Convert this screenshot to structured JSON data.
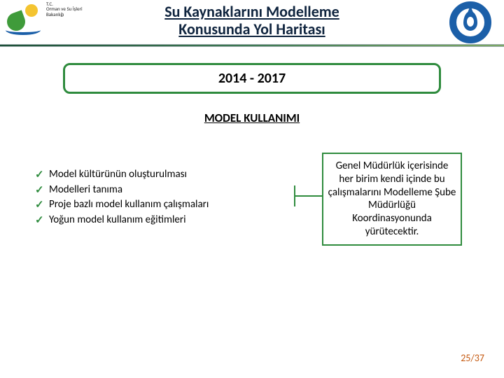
{
  "header": {
    "left_label_line1": "T.C.",
    "left_label_line2": "Orman ve Su İşleri",
    "left_label_line3": "Bakanlığı",
    "title_line1": "Su Kaynaklarını Modelleme",
    "title_line2": "Konusunda Yol Haritası"
  },
  "year_range": "2014 - 2017",
  "section_heading": "MODEL KULLANIMI",
  "bullets": [
    "Model kültürünün oluşturulması",
    "Modelleri tanıma",
    "Proje bazlı model kullanım çalışmaları",
    "Yoğun model kullanım eğitimleri"
  ],
  "side_box": "Genel Müdürlük içerisinde her birim kendi içinde bu çalışmalarını Modelleme Şube Müdürlüğü Koordinasyonunda yürütecektir.",
  "page_number": "25/37",
  "colors": {
    "accent_green": "#2e8b3d",
    "title_navy": "#0f243e",
    "page_orange": "#c55a11",
    "logo_blue": "#1b5fa8"
  }
}
